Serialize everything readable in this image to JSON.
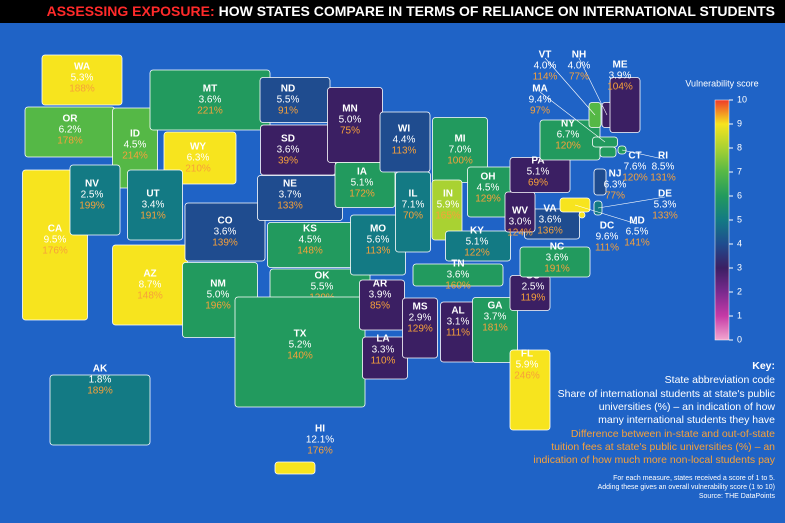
{
  "header": {
    "title_lead": "ASSESSING EXPOSURE:",
    "title_rest": "HOW STATES COMPARE IN TERMS OF RELIANCE ON INTERNATIONAL STUDENTS"
  },
  "colorbar": {
    "title": "Vulnerability score",
    "ticks": [
      0,
      1,
      2,
      3,
      4,
      5,
      6,
      7,
      8,
      9,
      10
    ],
    "range": [
      0,
      10
    ],
    "colors": [
      "#f2a6cf",
      "#c63aa6",
      "#7a2a8e",
      "#3b1f63",
      "#1f4c8f",
      "#137a84",
      "#229a5e",
      "#55b846",
      "#a9d232",
      "#f7e41e",
      "#ef3a2a"
    ]
  },
  "states": [
    {
      "code": "WA",
      "share": "5.3%",
      "fee": "188%",
      "score": 9
    },
    {
      "code": "OR",
      "share": "6.2%",
      "fee": "178%",
      "score": 7
    },
    {
      "code": "CA",
      "share": "9.5%",
      "fee": "176%",
      "score": 9
    },
    {
      "code": "ID",
      "share": "4.5%",
      "fee": "214%",
      "score": 7
    },
    {
      "code": "NV",
      "share": "2.5%",
      "fee": "199%",
      "score": 5
    },
    {
      "code": "MT",
      "share": "3.6%",
      "fee": "221%",
      "score": 6
    },
    {
      "code": "WY",
      "share": "6.3%",
      "fee": "210%",
      "score": 9
    },
    {
      "code": "UT",
      "share": "3.4%",
      "fee": "191%",
      "score": 5
    },
    {
      "code": "AZ",
      "share": "8.7%",
      "fee": "148%",
      "score": 9
    },
    {
      "code": "CO",
      "share": "3.6%",
      "fee": "139%",
      "score": 4
    },
    {
      "code": "NM",
      "share": "5.0%",
      "fee": "196%",
      "score": 6
    },
    {
      "code": "ND",
      "share": "5.5%",
      "fee": "91%",
      "score": 4
    },
    {
      "code": "SD",
      "share": "3.6%",
      "fee": "39%",
      "score": 3
    },
    {
      "code": "NE",
      "share": "3.7%",
      "fee": "133%",
      "score": 4
    },
    {
      "code": "KS",
      "share": "4.5%",
      "fee": "148%",
      "score": 6
    },
    {
      "code": "OK",
      "share": "5.5%",
      "fee": "129%",
      "score": 6
    },
    {
      "code": "TX",
      "share": "5.2%",
      "fee": "140%",
      "score": 6
    },
    {
      "code": "MN",
      "share": "5.0%",
      "fee": "75%",
      "score": 3
    },
    {
      "code": "IA",
      "share": "5.1%",
      "fee": "172%",
      "score": 6
    },
    {
      "code": "MO",
      "share": "5.6%",
      "fee": "113%",
      "score": 5
    },
    {
      "code": "AR",
      "share": "3.9%",
      "fee": "85%",
      "score": 3
    },
    {
      "code": "LA",
      "share": "3.3%",
      "fee": "110%",
      "score": 3
    },
    {
      "code": "WI",
      "share": "4.4%",
      "fee": "113%",
      "score": 4
    },
    {
      "code": "IL",
      "share": "7.1%",
      "fee": "70%",
      "score": 5
    },
    {
      "code": "MI",
      "share": "7.0%",
      "fee": "100%",
      "score": 6
    },
    {
      "code": "IN",
      "share": "5.9%",
      "fee": "165%",
      "score": 8
    },
    {
      "code": "OH",
      "share": "4.5%",
      "fee": "129%",
      "score": 6
    },
    {
      "code": "KY",
      "share": "5.1%",
      "fee": "122%",
      "score": 5
    },
    {
      "code": "TN",
      "share": "3.6%",
      "fee": "160%",
      "score": 6
    },
    {
      "code": "MS",
      "share": "2.9%",
      "fee": "129%",
      "score": 3
    },
    {
      "code": "AL",
      "share": "3.1%",
      "fee": "111%",
      "score": 3
    },
    {
      "code": "GA",
      "share": "3.7%",
      "fee": "181%",
      "score": 6
    },
    {
      "code": "FL",
      "share": "5.9%",
      "fee": "246%",
      "score": 9
    },
    {
      "code": "SC",
      "share": "2.5%",
      "fee": "119%",
      "score": 3
    },
    {
      "code": "NC",
      "share": "3.6%",
      "fee": "191%",
      "score": 6
    },
    {
      "code": "VA",
      "share": "3.6%",
      "fee": "136%",
      "score": 4
    },
    {
      "code": "WV",
      "share": "3.0%",
      "fee": "124%",
      "score": 3
    },
    {
      "code": "PA",
      "share": "5.1%",
      "fee": "69%",
      "score": 3
    },
    {
      "code": "NY",
      "share": "6.7%",
      "fee": "120%",
      "score": 6
    },
    {
      "code": "VT",
      "share": "4.0%",
      "fee": "114%",
      "score": 7
    },
    {
      "code": "NH",
      "share": "4.0%",
      "fee": "77%",
      "score": 3
    },
    {
      "code": "ME",
      "share": "3.9%",
      "fee": "104%",
      "score": 3
    },
    {
      "code": "MA",
      "share": "9.4%",
      "fee": "97%",
      "score": 6
    },
    {
      "code": "RI",
      "share": "8.5%",
      "fee": "131%",
      "score": 6
    },
    {
      "code": "CT",
      "share": "7.6%",
      "fee": "120%",
      "score": 6
    },
    {
      "code": "NJ",
      "share": "6.3%",
      "fee": "77%",
      "score": 4
    },
    {
      "code": "DE",
      "share": "5.3%",
      "fee": "133%",
      "score": 5
    },
    {
      "code": "MD",
      "share": "6.5%",
      "fee": "141%",
      "score": 9
    },
    {
      "code": "DC",
      "share": "9.6%",
      "fee": "111%",
      "score": 9
    },
    {
      "code": "AK",
      "share": "1.8%",
      "fee": "189%",
      "score": 5
    },
    {
      "code": "HI",
      "share": "12.1%",
      "fee": "176%",
      "score": 9
    }
  ],
  "key": {
    "heading": "Key:",
    "line1": "State abbreviation code",
    "line2": [
      "Share of international students at state's public",
      "universities (%) – an indication of how",
      "many international students they have"
    ],
    "line3": [
      "Difference between in-state and out-of-state",
      "tuition fees at state's public universities (%) – an",
      "indication of how much more non-local students pay"
    ],
    "footnote": [
      "For each measure, states received a score of 1 to 5.",
      "Adding these gives an overall vulnerability score (1 to 10)",
      "Source: THE DataPoints"
    ]
  }
}
